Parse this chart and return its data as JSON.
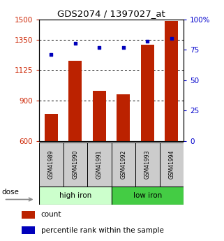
{
  "title": "GDS2074 / 1397027_at",
  "samples": [
    "GSM41989",
    "GSM41990",
    "GSM41991",
    "GSM41992",
    "GSM41993",
    "GSM41994"
  ],
  "counts": [
    800,
    1195,
    970,
    945,
    1310,
    1490
  ],
  "percentile_ranks": [
    71,
    80,
    77,
    77,
    82,
    84
  ],
  "ylim_left": [
    600,
    1500
  ],
  "ylim_right": [
    0,
    100
  ],
  "yticks_left": [
    600,
    900,
    1125,
    1350,
    1500
  ],
  "yticks_right": [
    0,
    25,
    50,
    75,
    100
  ],
  "ytick_labels_left": [
    "600",
    "900",
    "1125",
    "1350",
    "1500"
  ],
  "ytick_labels_right": [
    "0",
    "25",
    "50",
    "75",
    "100%"
  ],
  "bar_color": "#bb2200",
  "scatter_color": "#0000bb",
  "bar_width": 0.55,
  "ylabel_left_color": "#cc2200",
  "ylabel_right_color": "#0000cc",
  "dose_label": "dose",
  "legend_count": "count",
  "legend_percentile": "percentile rank within the sample",
  "grid_ticks": [
    900,
    1125,
    1350
  ],
  "high_iron_color": "#ccffcc",
  "low_iron_color": "#44cc44",
  "sample_box_color": "#cccccc"
}
